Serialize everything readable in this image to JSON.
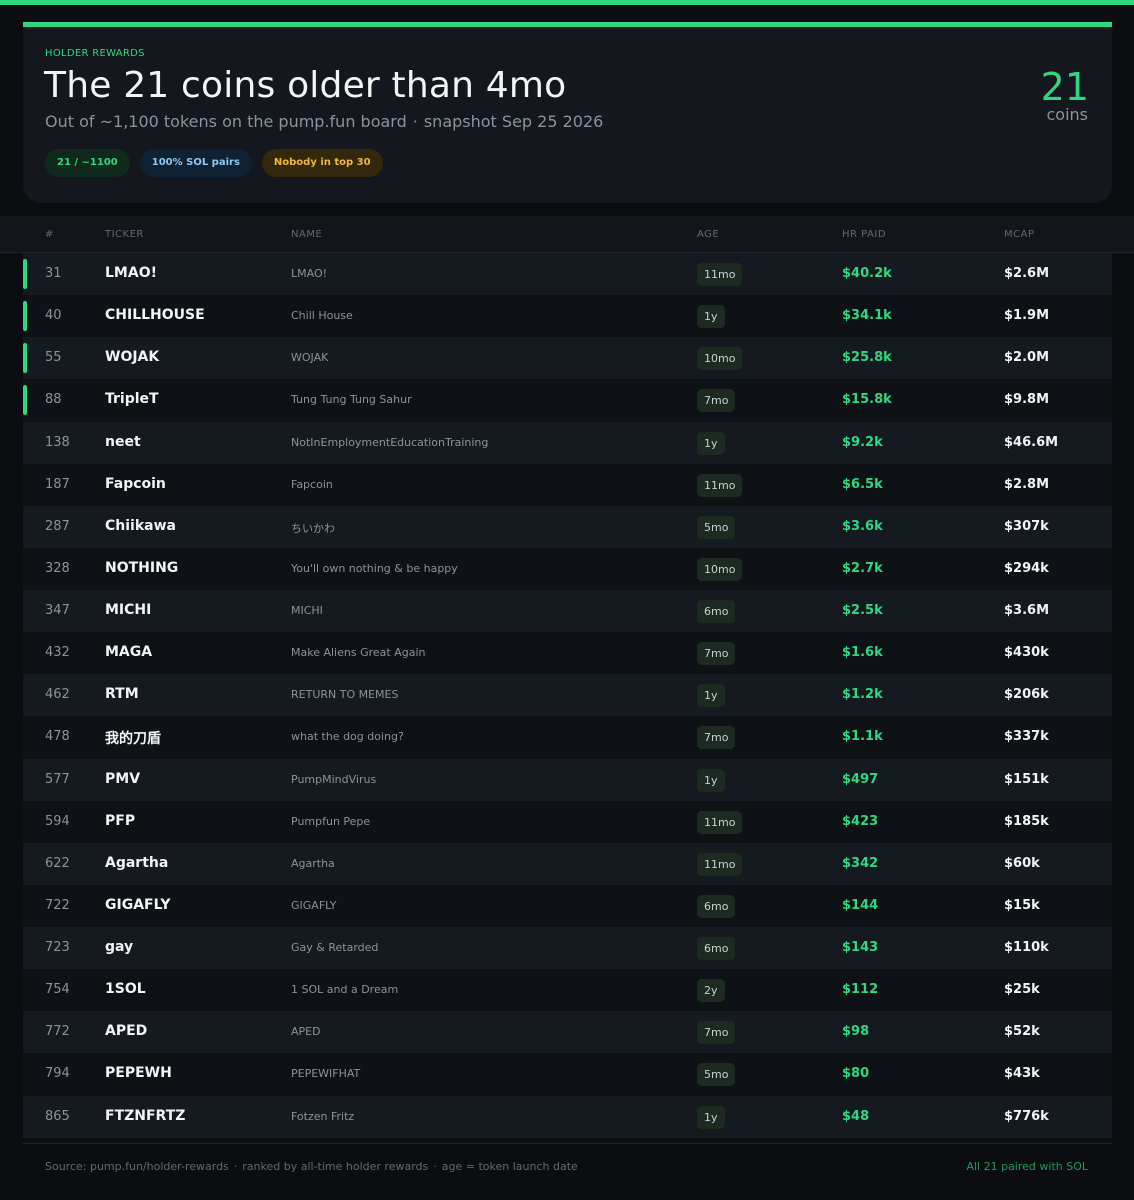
{
  "header": {
    "eyebrow": "HOLDER REWARDS",
    "title": "The 21 coins older than 4mo",
    "subtitle_main": "Out of ~1,100 tokens on the pump.fun board",
    "subtitle_sep": "·",
    "subtitle_snapshot": "snapshot Sep 25 2026",
    "pills": [
      "21 / ~1100",
      "100% SOL pairs",
      "Nobody in top 30"
    ],
    "count": "21",
    "count_label": "coins"
  },
  "table": {
    "columns": [
      "#",
      "TICKER",
      "NAME",
      "AGE",
      "HR PAID",
      "MCAP"
    ],
    "rows": [
      {
        "rank": "31",
        "ticker": "LMAO!",
        "name": "LMAO!",
        "age": "11mo",
        "paid": "$40.2k",
        "mcap": "$2.6M",
        "highlight": true
      },
      {
        "rank": "40",
        "ticker": "CHILLHOUSE",
        "name": "Chill House",
        "age": "1y",
        "paid": "$34.1k",
        "mcap": "$1.9M",
        "highlight": true
      },
      {
        "rank": "55",
        "ticker": "WOJAK",
        "name": "WOJAK",
        "age": "10mo",
        "paid": "$25.8k",
        "mcap": "$2.0M",
        "highlight": true
      },
      {
        "rank": "88",
        "ticker": "TripleT",
        "name": "Tung Tung Tung Sahur",
        "age": "7mo",
        "paid": "$15.8k",
        "mcap": "$9.8M",
        "highlight": true
      },
      {
        "rank": "138",
        "ticker": "neet",
        "name": "NotInEmploymentEducationTraining",
        "age": "1y",
        "paid": "$9.2k",
        "mcap": "$46.6M",
        "highlight": false
      },
      {
        "rank": "187",
        "ticker": "Fapcoin",
        "name": "Fapcoin",
        "age": "11mo",
        "paid": "$6.5k",
        "mcap": "$2.8M",
        "highlight": false
      },
      {
        "rank": "287",
        "ticker": "Chiikawa",
        "name": "ちいかわ",
        "age": "5mo",
        "paid": "$3.6k",
        "mcap": "$307k",
        "highlight": false
      },
      {
        "rank": "328",
        "ticker": "NOTHING",
        "name": "You'll own nothing & be happy",
        "age": "10mo",
        "paid": "$2.7k",
        "mcap": "$294k",
        "highlight": false
      },
      {
        "rank": "347",
        "ticker": "MICHI",
        "name": "MICHI",
        "age": "6mo",
        "paid": "$2.5k",
        "mcap": "$3.6M",
        "highlight": false
      },
      {
        "rank": "432",
        "ticker": "MAGA",
        "name": "Make Aliens Great Again",
        "age": "7mo",
        "paid": "$1.6k",
        "mcap": "$430k",
        "highlight": false
      },
      {
        "rank": "462",
        "ticker": "RTM",
        "name": "RETURN TO MEMES",
        "age": "1y",
        "paid": "$1.2k",
        "mcap": "$206k",
        "highlight": false
      },
      {
        "rank": "478",
        "ticker": "我的刀盾",
        "name": "what the dog doing?",
        "age": "7mo",
        "paid": "$1.1k",
        "mcap": "$337k",
        "highlight": false
      },
      {
        "rank": "577",
        "ticker": "PMV",
        "name": "PumpMindVirus",
        "age": "1y",
        "paid": "$497",
        "mcap": "$151k",
        "highlight": false
      },
      {
        "rank": "594",
        "ticker": "PFP",
        "name": "Pumpfun Pepe",
        "age": "11mo",
        "paid": "$423",
        "mcap": "$185k",
        "highlight": false
      },
      {
        "rank": "622",
        "ticker": "Agartha",
        "name": "Agartha",
        "age": "11mo",
        "paid": "$342",
        "mcap": "$60k",
        "highlight": false
      },
      {
        "rank": "722",
        "ticker": "GIGAFLY",
        "name": "GIGAFLY",
        "age": "6mo",
        "paid": "$144",
        "mcap": "$15k",
        "highlight": false
      },
      {
        "rank": "723",
        "ticker": "gay",
        "name": "Gay & Retarded",
        "age": "6mo",
        "paid": "$143",
        "mcap": "$110k",
        "highlight": false
      },
      {
        "rank": "754",
        "ticker": "1SOL",
        "name": "1 SOL and a Dream",
        "age": "2y",
        "paid": "$112",
        "mcap": "$25k",
        "highlight": false
      },
      {
        "rank": "772",
        "ticker": "APED",
        "name": "APED",
        "age": "7mo",
        "paid": "$98",
        "mcap": "$52k",
        "highlight": false
      },
      {
        "rank": "794",
        "ticker": "PEPEWH",
        "name": "PEPEWIFHAT",
        "age": "5mo",
        "paid": "$80",
        "mcap": "$43k",
        "highlight": false
      },
      {
        "rank": "865",
        "ticker": "FTZNFRTZ",
        "name": "Fotzen Fritz",
        "age": "1y",
        "paid": "$48",
        "mcap": "$776k",
        "highlight": false
      }
    ]
  },
  "footer": {
    "source": "Source: pump.fun/holder-rewards",
    "sep": "·",
    "ranked": "ranked by all-time holder rewards",
    "age_note": "age = token launch date",
    "right": "All 21 paired with SOL"
  },
  "colors": {
    "accent": "#2fd880",
    "background": "#0b0d10",
    "card": "#14181e"
  }
}
